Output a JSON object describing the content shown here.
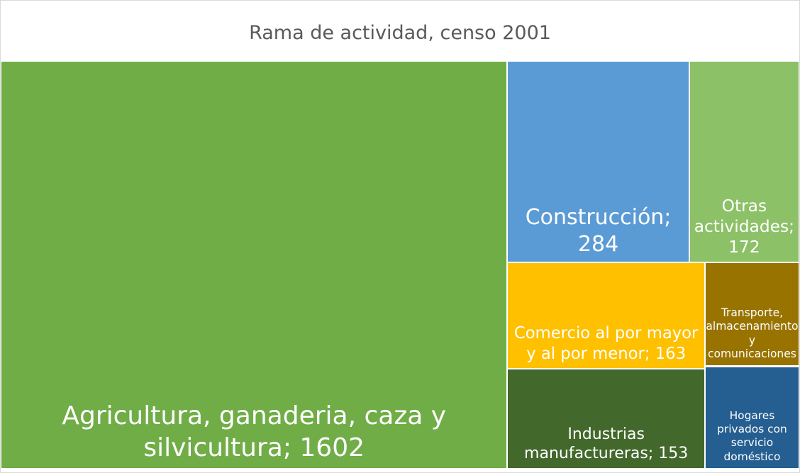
{
  "chart_data": {
    "type": "treemap",
    "title": "Rama de actividad, censo 2001",
    "categories": [
      "Agricultura, ganaderia, caza y silvicultura",
      "Construcción",
      "Otras actividades",
      "Comercio al por mayor y al por menor",
      "Industrias manufactureras",
      "Transporte, almacenamiento y comunicaciones",
      "Hogares privados con servicio doméstico"
    ],
    "values": [
      1602,
      284,
      172,
      163,
      153,
      76,
      75
    ],
    "value_labels": [
      "1602",
      "284",
      "172",
      "163",
      "153",
      null,
      null
    ],
    "colors": [
      "#70ad47",
      "#5b9bd5",
      "#8cc168",
      "#ffc000",
      "#43682b",
      "#997300",
      "#255e91"
    ]
  }
}
